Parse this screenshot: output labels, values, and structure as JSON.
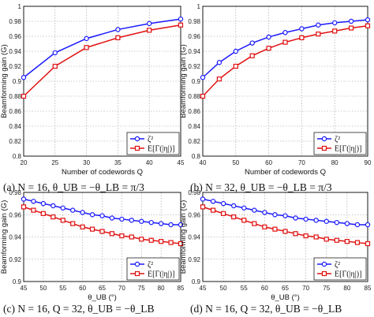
{
  "colors": {
    "series_blue": "#1a1aff",
    "series_red": "#e01010",
    "grid": "#9a9a9a",
    "axis": "#000000"
  },
  "chart_data": [
    {
      "type": "line",
      "xlabel": "Number of codewords Q",
      "ylabel": "Beamforming gain (G)",
      "xlim": [
        20,
        45
      ],
      "ylim": [
        0.8,
        1.0
      ],
      "xticks": [
        "20",
        "25",
        "30",
        "35",
        "40",
        "45"
      ],
      "yticks": [
        "0.8",
        "0.82",
        "0.84",
        "0.86",
        "0.88",
        "0.9",
        "0.92",
        "0.94",
        "0.96",
        "0.98",
        "1"
      ],
      "grid": true,
      "legend": "bottom-right",
      "x": [
        20,
        25,
        30,
        35,
        40,
        45
      ],
      "series": [
        {
          "name": "ζ²",
          "marker": "circle",
          "values": [
            0.905,
            0.938,
            0.957,
            0.969,
            0.977,
            0.983
          ]
        },
        {
          "name": "E[Γ(|η|)]",
          "marker": "square",
          "values": [
            0.88,
            0.92,
            0.945,
            0.958,
            0.968,
            0.975
          ]
        }
      ],
      "caption": "(a) N = 16, θ_UB = −θ_LB = π/3"
    },
    {
      "type": "line",
      "xlabel": "Number of codewords Q",
      "ylabel": "Beamforming gain (G)",
      "xlim": [
        40,
        90
      ],
      "ylim": [
        0.8,
        1.0
      ],
      "xticks": [
        "40",
        "50",
        "60",
        "70",
        "80",
        "90"
      ],
      "yticks": [
        "0.8",
        "0.82",
        "0.84",
        "0.86",
        "0.88",
        "0.9",
        "0.92",
        "0.94",
        "0.96",
        "0.98",
        "1"
      ],
      "grid": true,
      "legend": "bottom-right",
      "x": [
        40,
        45,
        50,
        55,
        60,
        65,
        70,
        75,
        80,
        85,
        90
      ],
      "series": [
        {
          "name": "ζ²",
          "marker": "circle",
          "values": [
            0.905,
            0.925,
            0.94,
            0.951,
            0.959,
            0.965,
            0.97,
            0.975,
            0.978,
            0.98,
            0.982
          ]
        },
        {
          "name": "E[Γ(|η|)]",
          "marker": "square",
          "values": [
            0.88,
            0.903,
            0.92,
            0.934,
            0.944,
            0.952,
            0.958,
            0.963,
            0.967,
            0.971,
            0.974
          ]
        }
      ],
      "caption": "(b) N = 32, θ_UB = −θ_LB = π/3"
    },
    {
      "type": "line",
      "xlabel": "θ_UB (°)",
      "ylabel": "Beamforming gain (G)",
      "xlim": [
        45,
        85
      ],
      "ylim": [
        0.9,
        0.98
      ],
      "xticks": [
        "45",
        "50",
        "55",
        "60",
        "65",
        "70",
        "75",
        "80",
        "85"
      ],
      "yticks": [
        "0.9",
        "0.92",
        "0.94",
        "0.96",
        "0.98"
      ],
      "grid": true,
      "legend": "bottom-right",
      "x": [
        45,
        47.5,
        50,
        52.5,
        55,
        57.5,
        60,
        62.5,
        65,
        67.5,
        70,
        72.5,
        75,
        77.5,
        80,
        82.5,
        85
      ],
      "series": [
        {
          "name": "ζ²",
          "marker": "circle",
          "values": [
            0.974,
            0.972,
            0.97,
            0.968,
            0.966,
            0.964,
            0.962,
            0.96,
            0.959,
            0.957,
            0.956,
            0.955,
            0.954,
            0.953,
            0.952,
            0.951,
            0.951
          ]
        },
        {
          "name": "E[Γ(|η|)]",
          "marker": "square",
          "values": [
            0.967,
            0.964,
            0.961,
            0.958,
            0.955,
            0.952,
            0.949,
            0.947,
            0.945,
            0.943,
            0.941,
            0.94,
            0.938,
            0.937,
            0.936,
            0.935,
            0.934
          ]
        }
      ],
      "caption": "(c) N = 16, Q = 32, θ_UB = −θ_LB"
    },
    {
      "type": "line",
      "xlabel": "θ_UB (°)",
      "ylabel": "Beamforming gain (G)",
      "xlim": [
        45,
        85
      ],
      "ylim": [
        0.9,
        0.98
      ],
      "xticks": [
        "45",
        "50",
        "55",
        "60",
        "65",
        "70",
        "75",
        "80",
        "85"
      ],
      "yticks": [
        "0.9",
        "0.92",
        "0.94",
        "0.96",
        "0.98"
      ],
      "grid": true,
      "legend": "bottom-right",
      "x": [
        45,
        47.5,
        50,
        52.5,
        55,
        57.5,
        60,
        62.5,
        65,
        67.5,
        70,
        72.5,
        75,
        77.5,
        80,
        82.5,
        85
      ],
      "series": [
        {
          "name": "ζ²",
          "marker": "circle",
          "values": [
            0.974,
            0.972,
            0.97,
            0.968,
            0.966,
            0.964,
            0.962,
            0.96,
            0.959,
            0.957,
            0.956,
            0.955,
            0.954,
            0.953,
            0.952,
            0.951,
            0.951
          ]
        },
        {
          "name": "E[Γ(|η|)]",
          "marker": "square",
          "values": [
            0.967,
            0.964,
            0.961,
            0.958,
            0.955,
            0.952,
            0.949,
            0.947,
            0.945,
            0.943,
            0.941,
            0.94,
            0.938,
            0.937,
            0.936,
            0.935,
            0.934
          ]
        }
      ],
      "caption": "(d) N = 16, Q = 32, θ_UB = −θ_LB"
    }
  ]
}
